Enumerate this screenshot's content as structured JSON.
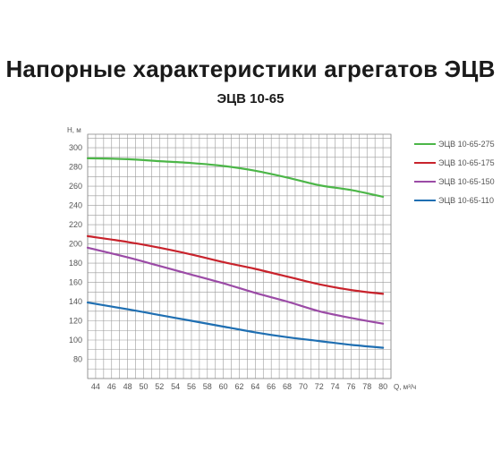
{
  "chart_data": {
    "type": "line",
    "title": "Напорные характеристики агрегатов ЭЦВ",
    "subtitle": "ЭЦВ 10-65",
    "xlabel": "Q, м³/ч",
    "ylabel": "H, м",
    "xlim": [
      43,
      81
    ],
    "ylim": [
      60,
      314
    ],
    "x_ticks": [
      44,
      46,
      48,
      50,
      52,
      54,
      56,
      58,
      60,
      62,
      64,
      66,
      68,
      70,
      72,
      74,
      76,
      78,
      80
    ],
    "y_ticks": [
      80,
      100,
      120,
      140,
      160,
      180,
      200,
      220,
      240,
      260,
      280,
      300
    ],
    "grid": true,
    "legend_position": "right",
    "series": [
      {
        "name": "ЭЦВ 10-65-275",
        "color": "#4cb648",
        "x": [
          43,
          48,
          52,
          56,
          60,
          64,
          68,
          72,
          76,
          80
        ],
        "y": [
          289,
          288,
          286,
          284,
          281,
          276,
          269,
          261,
          256,
          249
        ]
      },
      {
        "name": "ЭЦВ 10-65-175",
        "color": "#c8232c",
        "x": [
          43,
          48,
          52,
          56,
          60,
          64,
          68,
          72,
          76,
          80
        ],
        "y": [
          208,
          202,
          196,
          189,
          181,
          174,
          166,
          158,
          152,
          148
        ]
      },
      {
        "name": "ЭЦВ 10-65-150",
        "color": "#9b4ba6",
        "x": [
          43,
          48,
          52,
          56,
          60,
          64,
          68,
          72,
          76,
          80
        ],
        "y": [
          196,
          186,
          177,
          168,
          159,
          149,
          140,
          130,
          123,
          117
        ]
      },
      {
        "name": "ЭЦВ 10-65-110",
        "color": "#1f6fb2",
        "x": [
          43,
          48,
          52,
          56,
          60,
          64,
          68,
          72,
          76,
          80
        ],
        "y": [
          139,
          132,
          126,
          120,
          114,
          108,
          103,
          99,
          95,
          92
        ]
      }
    ]
  }
}
